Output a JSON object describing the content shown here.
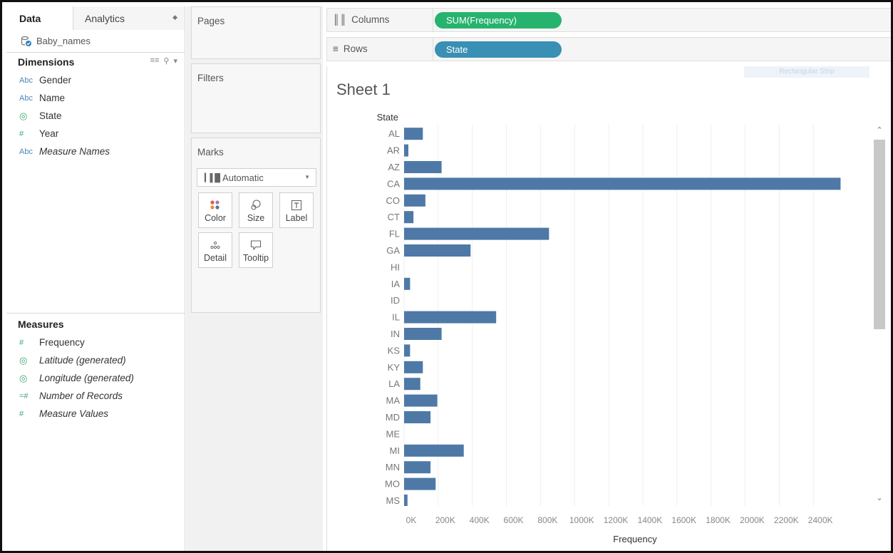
{
  "data_pane": {
    "tabs": [
      {
        "label": "Data"
      },
      {
        "label": "Analytics"
      }
    ],
    "datasource": "Baby_names",
    "dimensions_heading": "Dimensions",
    "dimensions": [
      {
        "type": "Abc",
        "name": "Gender"
      },
      {
        "type": "Abc",
        "name": "Name"
      },
      {
        "type": "globe",
        "name": "State"
      },
      {
        "type": "#",
        "name": "Year"
      },
      {
        "type": "Abc",
        "name": "Measure Names"
      }
    ],
    "measures_heading": "Measures",
    "measures": [
      {
        "type": "#",
        "name": "Frequency"
      },
      {
        "type": "globe",
        "name": "Latitude (generated)"
      },
      {
        "type": "globe",
        "name": "Longitude (generated)"
      },
      {
        "type": "=#",
        "name": "Number of Records"
      },
      {
        "type": "#",
        "name": "Measure Values"
      }
    ]
  },
  "cards": {
    "pages": "Pages",
    "filters": "Filters",
    "marks": "Marks",
    "mark_type": "Automatic",
    "mark_buttons": {
      "color": "Color",
      "size": "Size",
      "label": "Label",
      "detail": "Detail",
      "tooltip": "Tooltip"
    }
  },
  "shelves": {
    "columns_label": "Columns",
    "columns_pill": "SUM(Frequency)",
    "rows_label": "Rows",
    "rows_pill": "State"
  },
  "view": {
    "sheet_title": "Sheet 1",
    "ghost_tooltip": "Rectangular Strip"
  },
  "colors": {
    "bar": "#4e79a7",
    "columns_pill": "#26b36d",
    "rows_pill": "#3a8fb5"
  },
  "chart_data": {
    "type": "bar",
    "orientation": "horizontal",
    "title": "Sheet 1",
    "row_header": "State",
    "xlabel": "Frequency",
    "categories": [
      "AL",
      "AR",
      "AZ",
      "CA",
      "CO",
      "CT",
      "FL",
      "GA",
      "HI",
      "IA",
      "ID",
      "IL",
      "IN",
      "KS",
      "KY",
      "LA",
      "MA",
      "MD",
      "ME",
      "MI",
      "MN",
      "MO",
      "MS"
    ],
    "values": [
      110000,
      25000,
      220000,
      2560000,
      125000,
      55000,
      850000,
      390000,
      0,
      35000,
      0,
      540000,
      220000,
      35000,
      110000,
      95000,
      195000,
      155000,
      0,
      350000,
      155000,
      185000,
      20000
    ],
    "x_ticks": [
      "0K",
      "200K",
      "400K",
      "600K",
      "800K",
      "1000K",
      "1200K",
      "1400K",
      "1600K",
      "1800K",
      "2000K",
      "2200K",
      "2400K"
    ],
    "xlim": [
      0,
      2600000
    ],
    "grid": "vertical"
  }
}
